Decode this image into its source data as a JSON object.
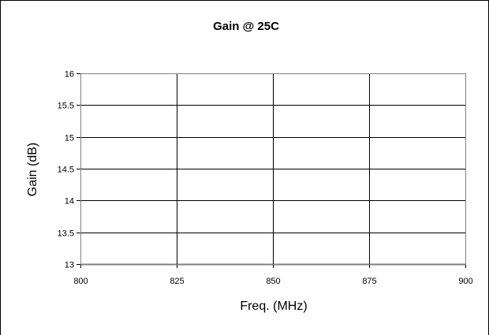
{
  "chart_data": {
    "type": "line",
    "title": "Gain @ 25C",
    "xlabel": "Freq. (MHz)",
    "ylabel": "Gain (dB)",
    "xlim": [
      800,
      900
    ],
    "ylim": [
      13,
      16
    ],
    "x_ticks": [
      800,
      825,
      850,
      875,
      900
    ],
    "y_ticks": [
      13,
      13.5,
      14,
      14.5,
      15,
      15.5,
      16
    ],
    "x_tick_labels": [
      "800",
      "825",
      "850",
      "875",
      "900"
    ],
    "y_tick_labels": [
      "13",
      "13.5",
      "14",
      "14.5",
      "15",
      "15.5",
      "16"
    ],
    "grid": true,
    "legend": false,
    "series": []
  }
}
